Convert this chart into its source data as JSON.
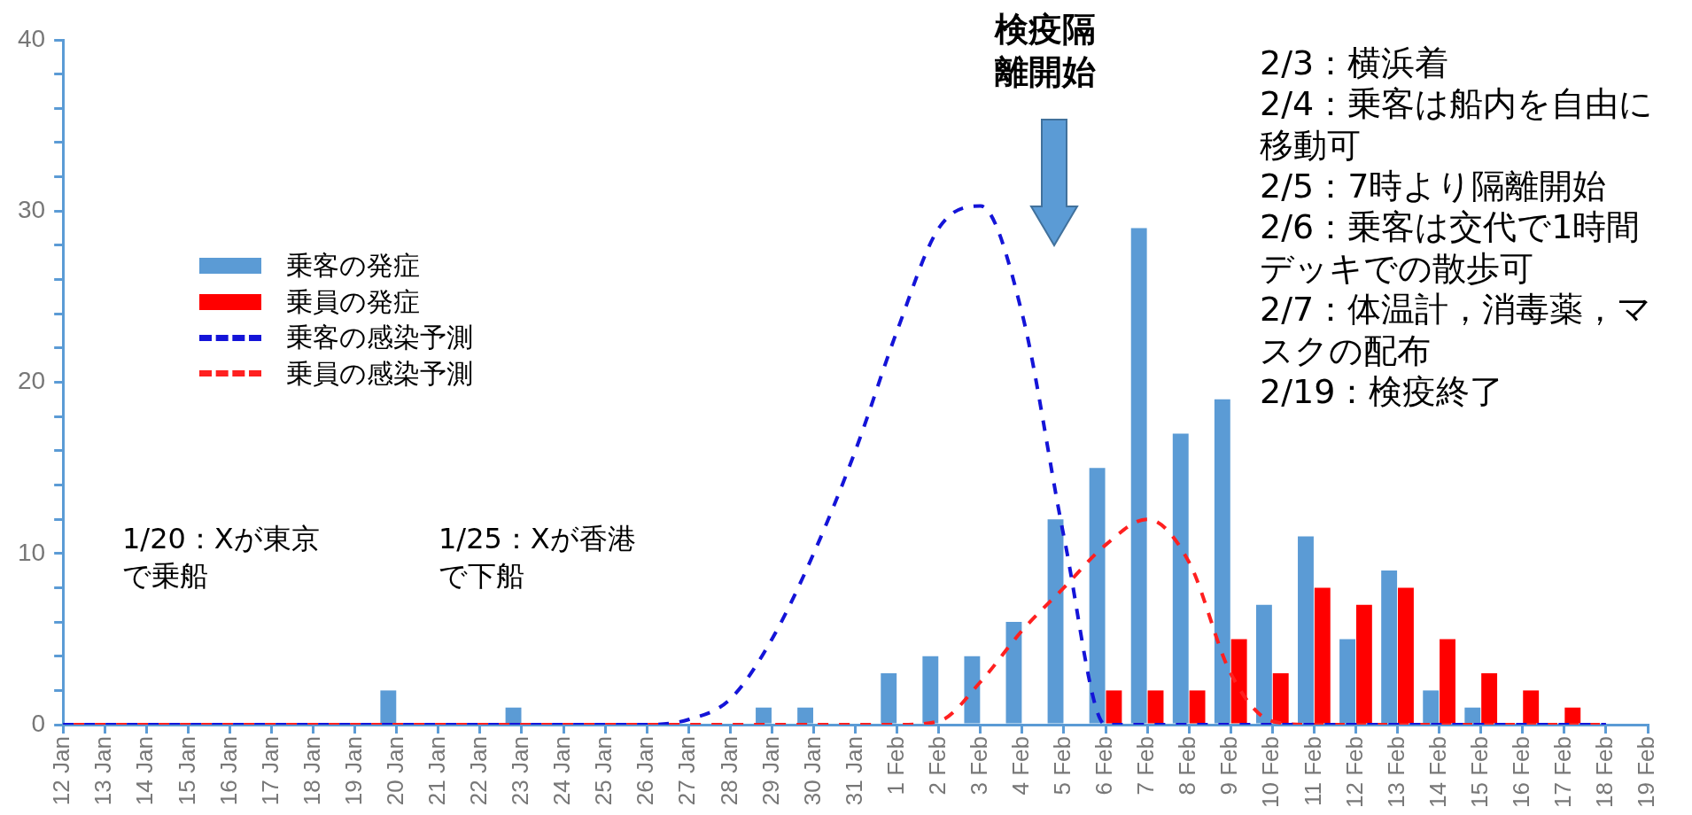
{
  "chart_data": {
    "type": "bar",
    "categories": [
      "12 Jan",
      "13 Jan",
      "14 Jan",
      "15 Jan",
      "16 Jan",
      "17 Jan",
      "18 Jan",
      "19 Jan",
      "20 Jan",
      "21 Jan",
      "22 Jan",
      "23 Jan",
      "24 Jan",
      "25 Jan",
      "26 Jan",
      "27 Jan",
      "28 Jan",
      "29 Jan",
      "30 Jan",
      "31 Jan",
      "1 Feb",
      "2 Feb",
      "3 Feb",
      "4 Feb",
      "5 Feb",
      "6 Feb",
      "7 Feb",
      "8 Feb",
      "9 Feb",
      "10 Feb",
      "11 Feb",
      "12 Feb",
      "13 Feb",
      "14 Feb",
      "15 Feb",
      "16 Feb",
      "17 Feb",
      "18 Feb",
      "19 Feb"
    ],
    "series": [
      {
        "name": "乗客の発症",
        "color": "#5b9bd5",
        "values": [
          0,
          0,
          0,
          0,
          0,
          0,
          0,
          0,
          2,
          0,
          0,
          1,
          0,
          0,
          0,
          0,
          0,
          1,
          1,
          0,
          3,
          4,
          4,
          6,
          12,
          15,
          29,
          17,
          19,
          7,
          11,
          5,
          9,
          2,
          1,
          0,
          0,
          0,
          0
        ]
      },
      {
        "name": "乗員の発症",
        "color": "#ff0000",
        "values": [
          0,
          0,
          0,
          0,
          0,
          0,
          0,
          0,
          0,
          0,
          0,
          0,
          0,
          0,
          0,
          0,
          0,
          0,
          0,
          0,
          0,
          0,
          0,
          0,
          0,
          2,
          2,
          2,
          5,
          3,
          8,
          7,
          8,
          5,
          3,
          2,
          1,
          0,
          0
        ]
      },
      {
        "name": "乗客の感染予測",
        "type": "line",
        "line_style": "dashed",
        "color": "#1414d8",
        "values": [
          0,
          0,
          0,
          0,
          0,
          0,
          0,
          0,
          0,
          0,
          0,
          0,
          0,
          0,
          0,
          0.3,
          1.5,
          5,
          10,
          16,
          23,
          29,
          30.3,
          24,
          11,
          0,
          0,
          0,
          0,
          0,
          0,
          0,
          0,
          0,
          0,
          0,
          0,
          0,
          null
        ]
      },
      {
        "name": "乗員の感染予測",
        "type": "line",
        "line_style": "dashed",
        "color": "#ff2020",
        "values": [
          0,
          0,
          0,
          0,
          0,
          0,
          0,
          0,
          0,
          0,
          0,
          0,
          0,
          0,
          0,
          0,
          0,
          0,
          0,
          0,
          0,
          0.2,
          2.5,
          5.5,
          8,
          10.5,
          12,
          9.5,
          3,
          0.2,
          0,
          0,
          0,
          0,
          0,
          0,
          0,
          0,
          null
        ]
      }
    ],
    "ylim": [
      0,
      40
    ],
    "yticks": [
      0,
      {
        "value": 2,
        "label": null
      },
      {
        "value": 4,
        "label": null
      },
      {
        "value": 6,
        "label": null
      },
      {
        "value": 8,
        "label": null
      },
      10,
      {
        "value": 12,
        "label": null
      },
      {
        "value": 14,
        "label": null
      },
      {
        "value": 16,
        "label": null
      },
      {
        "value": 18,
        "label": null
      },
      20,
      {
        "value": 22,
        "label": null
      },
      {
        "value": 24,
        "label": null
      },
      {
        "value": 26,
        "label": null
      },
      {
        "value": 28,
        "label": null
      },
      30,
      {
        "value": 32,
        "label": null
      },
      {
        "value": 34,
        "label": null
      },
      {
        "value": 36,
        "label": null
      },
      {
        "value": 38,
        "label": null
      },
      40
    ],
    "marker": "none",
    "legend": "left",
    "annotations": [
      "検疫隔離開始",
      "2/3：横浜着",
      "2/4：乗客は船内を自由に移動可",
      "2/5：7時より隔離開始",
      "2/6：乗客は交代で1時間デッキでの散歩可",
      "2/7：体温計，消毒薬，マスクの配布",
      "2/19：検疫終了",
      "1/20：Xが東京で乗船",
      "1/25：Xが香港で下船"
    ]
  }
}
